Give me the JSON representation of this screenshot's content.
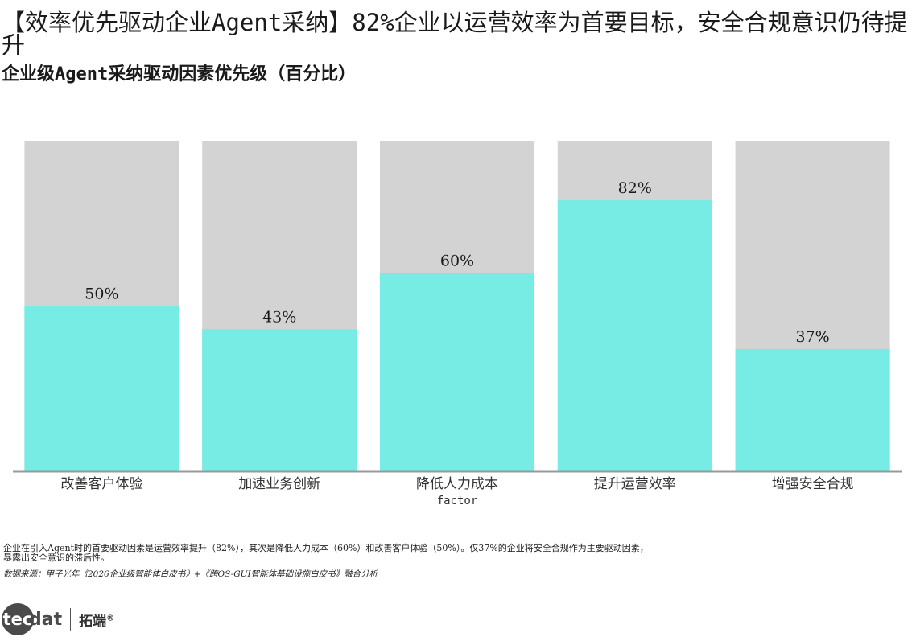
{
  "title": "【效率优先驱动企业Agent采纳】82%企业以运营效率为首要目标，安全合规意识仍待提升",
  "subtitle": "企业级Agent采纳驱动因素优先级（百分比）",
  "note": "企业在引入Agent时的首要驱动因素是运营效率提升（82%），其次是降低人力成本（60%）和改善客户体验（50%）。仅37%的企业将安全合规作为主要驱动因素，暴露出安全意识的滞后性。",
  "source": "数据来源：甲子光年《2026企业级智能体白皮书》+《跨OS-GUI智能体基础设施白皮书》融合分析",
  "logo": {
    "mark_circle": "tec",
    "mark_text": "dat",
    "cn": "拓端",
    "reg": "®"
  },
  "colors": {
    "bar": "#76ECE4",
    "track": "#D3D3D3",
    "axis": "#999999"
  },
  "chart_data": {
    "type": "bar",
    "categories": [
      "改善客户体验",
      "加速业务创新",
      "降低人力成本",
      "提升运营效率",
      "增强安全合规"
    ],
    "values": [
      50,
      43,
      60,
      82,
      37
    ],
    "data_labels": [
      "50%",
      "43%",
      "60%",
      "82%",
      "37%"
    ],
    "xlabel": "factor",
    "ylabel": "",
    "ylim": [
      0,
      100
    ],
    "background_track": true,
    "grid": false
  }
}
